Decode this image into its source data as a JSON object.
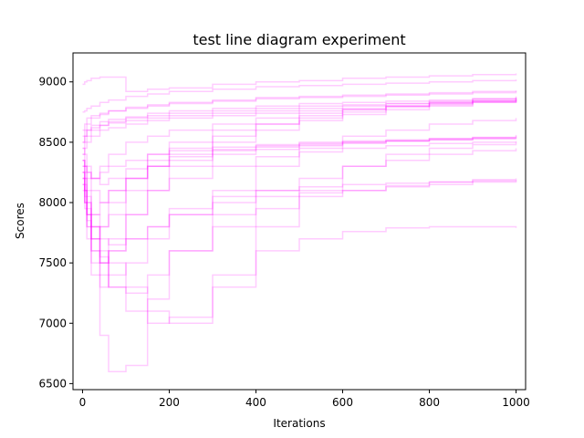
{
  "chart_data": {
    "type": "line",
    "title": "test line diagram experiment",
    "xlabel": "Iterations",
    "ylabel": "Scores",
    "xlim": [
      -22,
      1022
    ],
    "ylim": [
      6450,
      9240
    ],
    "xticks": [
      0,
      200,
      400,
      600,
      800,
      1000
    ],
    "yticks": [
      6500,
      7000,
      7500,
      8000,
      8500,
      9000
    ],
    "grid": false,
    "legend": "none",
    "line_color": "#ff00ff",
    "line_alpha": 0.2,
    "series_style": "step",
    "x": [
      0,
      5,
      10,
      20,
      40,
      60,
      100,
      150,
      200,
      300,
      400,
      500,
      600,
      700,
      800,
      900,
      1000
    ],
    "series": [
      {
        "values": [
          8980,
          9000,
          9010,
          9030,
          9040,
          9040,
          8920,
          8940,
          8950,
          8980,
          9000,
          9010,
          9030,
          9040,
          9050,
          9060,
          9070
        ]
      },
      {
        "values": [
          8750,
          8760,
          8780,
          8800,
          8830,
          8850,
          8880,
          8900,
          8920,
          8940,
          8960,
          8970,
          8980,
          8990,
          9000,
          9010,
          9020
        ]
      },
      {
        "values": [
          8600,
          8650,
          8700,
          8720,
          8740,
          8760,
          8780,
          8800,
          8820,
          8840,
          8860,
          8870,
          8880,
          8890,
          8900,
          8910,
          8920
        ]
      },
      {
        "values": [
          8500,
          8550,
          8600,
          8640,
          8670,
          8690,
          8710,
          8740,
          8760,
          8780,
          8800,
          8820,
          8830,
          8840,
          8850,
          8860,
          8870
        ]
      },
      {
        "values": [
          8400,
          8450,
          8500,
          8550,
          8600,
          8620,
          8650,
          8680,
          8700,
          8720,
          8740,
          8760,
          8780,
          8800,
          8820,
          8840,
          8850
        ]
      },
      {
        "values": [
          8350,
          8300,
          8250,
          8200,
          8300,
          8400,
          8500,
          8550,
          8600,
          8650,
          8700,
          8740,
          8770,
          8800,
          8820,
          8840,
          8860
        ]
      },
      {
        "values": [
          8200,
          8100,
          7900,
          7700,
          7800,
          8000,
          8200,
          8400,
          8500,
          8600,
          8650,
          8700,
          8750,
          8790,
          8810,
          8830,
          8850
        ]
      },
      {
        "values": [
          8300,
          8200,
          8000,
          7600,
          7300,
          7600,
          7900,
          8100,
          8300,
          8500,
          8600,
          8680,
          8730,
          8770,
          8800,
          8830,
          8860
        ]
      },
      {
        "values": [
          8450,
          8400,
          8300,
          8200,
          8250,
          8300,
          8350,
          8400,
          8430,
          8460,
          8480,
          8500,
          8510,
          8520,
          8530,
          8540,
          8550
        ]
      },
      {
        "values": [
          8350,
          8250,
          8100,
          7900,
          8000,
          8100,
          8200,
          8300,
          8380,
          8430,
          8460,
          8480,
          8500,
          8510,
          8520,
          8530,
          8540
        ]
      },
      {
        "values": [
          8250,
          8100,
          7900,
          7700,
          7500,
          7700,
          7900,
          8100,
          8200,
          8300,
          8380,
          8420,
          8450,
          8470,
          8490,
          8500,
          8510
        ]
      },
      {
        "values": [
          8150,
          8000,
          7800,
          7400,
          6900,
          6600,
          6650,
          7200,
          7600,
          7900,
          8100,
          8200,
          8300,
          8350,
          8400,
          8430,
          8450
        ]
      },
      {
        "values": [
          8300,
          8200,
          8000,
          7800,
          7500,
          7300,
          7100,
          7000,
          7050,
          7400,
          7800,
          8100,
          8300,
          8400,
          8450,
          8480,
          8500
        ]
      },
      {
        "values": [
          8200,
          8000,
          7800,
          7600,
          7500,
          7600,
          7700,
          7800,
          7900,
          8000,
          8050,
          8080,
          8100,
          8130,
          8150,
          8170,
          8180
        ]
      },
      {
        "values": [
          8100,
          7950,
          7700,
          7500,
          7400,
          7300,
          7250,
          7400,
          7600,
          7800,
          7950,
          8050,
          8100,
          8140,
          8170,
          8190,
          8200
        ]
      },
      {
        "values": [
          8200,
          8050,
          7900,
          7800,
          7600,
          7500,
          7300,
          7100,
          7000,
          7300,
          7600,
          7700,
          7760,
          7790,
          7800,
          7800,
          7790
        ]
      },
      {
        "values": [
          8550,
          8600,
          8650,
          8700,
          8730,
          8760,
          8790,
          8810,
          8830,
          8850,
          8870,
          8880,
          8890,
          8900,
          8910,
          8920,
          8930
        ]
      },
      {
        "values": [
          8450,
          8500,
          8550,
          8600,
          8640,
          8670,
          8700,
          8720,
          8740,
          8760,
          8780,
          8800,
          8810,
          8820,
          8830,
          8840,
          8850
        ]
      },
      {
        "values": [
          8250,
          8150,
          8050,
          7900,
          7800,
          7900,
          8100,
          8300,
          8450,
          8550,
          8650,
          8720,
          8770,
          8800,
          8830,
          8850,
          8870
        ]
      },
      {
        "values": [
          8400,
          8300,
          8200,
          8100,
          8000,
          8100,
          8200,
          8300,
          8350,
          8400,
          8440,
          8470,
          8490,
          8510,
          8530,
          8540,
          8560
        ]
      },
      {
        "values": [
          8350,
          8300,
          8250,
          8200,
          8150,
          8200,
          8280,
          8350,
          8400,
          8440,
          8470,
          8490,
          8500,
          8510,
          8520,
          8530,
          8530
        ]
      },
      {
        "values": [
          8500,
          8550,
          8600,
          8620,
          8640,
          8660,
          8680,
          8700,
          8720,
          8740,
          8760,
          8780,
          8800,
          8820,
          8840,
          8860,
          8880
        ]
      },
      {
        "values": [
          8250,
          8100,
          7950,
          7800,
          7700,
          7650,
          7700,
          7800,
          7950,
          8050,
          8100,
          8130,
          8150,
          8160,
          8170,
          8180,
          8190
        ]
      },
      {
        "values": [
          8150,
          8000,
          7850,
          7700,
          7550,
          7400,
          7500,
          7700,
          7900,
          8100,
          8300,
          8450,
          8550,
          8600,
          8650,
          8680,
          8700
        ]
      }
    ]
  }
}
